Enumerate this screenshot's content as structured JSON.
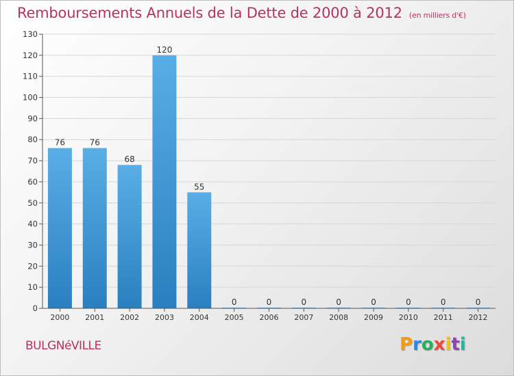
{
  "chart_data": {
    "type": "bar",
    "title": "Remboursements Annuels de la Dette de 2000 à 2012",
    "subtitle": "(en milliers d'€)",
    "categories": [
      "2000",
      "2001",
      "2002",
      "2003",
      "2004",
      "2005",
      "2006",
      "2007",
      "2008",
      "2009",
      "2010",
      "2011",
      "2012"
    ],
    "values": [
      76,
      76,
      68,
      120,
      55,
      0,
      0,
      0,
      0,
      0,
      0,
      0,
      0
    ],
    "ylim": [
      0,
      130
    ],
    "yticks": [
      0,
      10,
      20,
      30,
      40,
      50,
      60,
      70,
      80,
      90,
      100,
      110,
      120,
      130
    ],
    "grid": true,
    "xlabel": "",
    "ylabel": "",
    "bar_color_top": "#5aaee6",
    "bar_color_bottom": "#2a7fc0"
  },
  "location": "BULGNéVILLE",
  "logo": {
    "letters": [
      "P",
      "r",
      "o",
      "x",
      "i",
      "t",
      "i"
    ],
    "colors": [
      "#f39c12",
      "#2e86de",
      "#27ae60",
      "#e74c3c",
      "#f1c40f",
      "#8e44ad",
      "#1abc9c"
    ]
  }
}
